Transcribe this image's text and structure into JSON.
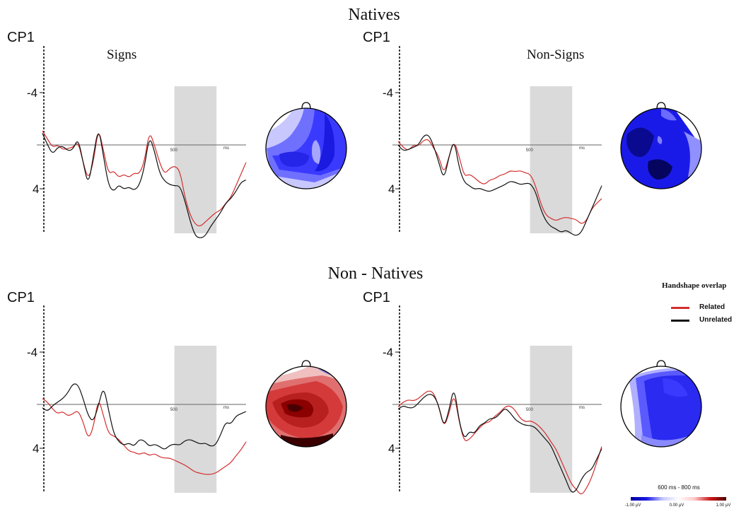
{
  "titles": {
    "natives": "Natives",
    "non_natives": "Non - Natives"
  },
  "legend": {
    "title": "Handshape overlap",
    "items": [
      {
        "label": "Related",
        "color": "#d32f2f"
      },
      {
        "label": "Unrelated",
        "color": "#111111"
      }
    ]
  },
  "colorbar": {
    "range_label": "600 ms - 800 ms",
    "ticks": [
      "-1.00 μV",
      "0.00 μV",
      "1.00 μV"
    ],
    "colors": [
      "#0000a0",
      "#ffffff",
      "#500000"
    ]
  },
  "chart_data": [
    {
      "type": "line",
      "group": "Natives",
      "electrode": "CP1",
      "condition": "Signs",
      "yticks": [
        "-4",
        "4"
      ],
      "xticks": [
        "500",
        "ms"
      ],
      "ylim": [
        -8,
        8
      ],
      "xlim": [
        -100,
        900
      ],
      "shaded_window_ms": [
        600,
        800
      ],
      "topo_colors": "blue",
      "series": [
        {
          "name": "Related",
          "color": "#d32f2f",
          "x": [
            -100,
            -75,
            -50,
            -25,
            0,
            25,
            50,
            75,
            100,
            125,
            150,
            175,
            200,
            225,
            250,
            275,
            300,
            325,
            350,
            375,
            400,
            425,
            450,
            475,
            500,
            525,
            550,
            575,
            600,
            625,
            650,
            675,
            700,
            725,
            750,
            775,
            800,
            825,
            850,
            875,
            900
          ],
          "y": [
            -1.2,
            -0.5,
            0.2,
            0,
            0.4,
            0.3,
            0.2,
            -0.3,
            1.5,
            3,
            1.5,
            -1.5,
            0.5,
            2.5,
            2.2,
            2.8,
            2.5,
            2.8,
            2.4,
            2.5,
            1.5,
            -1.2,
            0,
            1.5,
            2.5,
            2,
            1.8,
            2.2,
            4.5,
            6,
            6.8,
            7,
            6.6,
            6.2,
            5.8,
            5.6,
            5,
            4.5,
            3.5,
            2.5,
            1.5
          ]
        },
        {
          "name": "Unrelated",
          "color": "#111111",
          "x": [
            -100,
            -75,
            -50,
            -25,
            0,
            25,
            50,
            75,
            100,
            125,
            150,
            175,
            200,
            225,
            250,
            275,
            300,
            325,
            350,
            375,
            400,
            425,
            450,
            475,
            500,
            525,
            550,
            575,
            600,
            625,
            650,
            675,
            700,
            725,
            750,
            775,
            800,
            825,
            850,
            875,
            900
          ],
          "y": [
            -1,
            0,
            0.8,
            0.2,
            0.1,
            0.5,
            0.4,
            -0.6,
            1.5,
            3.5,
            1,
            -1.6,
            1,
            3.5,
            4,
            3.4,
            3.8,
            3.6,
            3.9,
            3.5,
            2,
            -0.8,
            0.5,
            2.4,
            3.1,
            3.4,
            3.5,
            3.5,
            4.8,
            6.5,
            7.8,
            8,
            7.8,
            7,
            6.4,
            5.8,
            5,
            4.6,
            4,
            3.2,
            3
          ]
        }
      ]
    },
    {
      "type": "line",
      "group": "Natives",
      "electrode": "CP1",
      "condition": "Non-Signs",
      "yticks": [
        "-4",
        "4"
      ],
      "xticks": [
        "500",
        "ms"
      ],
      "ylim": [
        -8,
        8
      ],
      "xlim": [
        -100,
        900
      ],
      "shaded_window_ms": [
        600,
        800
      ],
      "topo_colors": "blue",
      "series": [
        {
          "name": "Related",
          "color": "#d32f2f",
          "x": [
            -100,
            -75,
            -50,
            -25,
            0,
            25,
            50,
            75,
            100,
            125,
            150,
            175,
            200,
            225,
            250,
            275,
            300,
            325,
            350,
            375,
            400,
            425,
            450,
            475,
            500,
            525,
            550,
            575,
            600,
            625,
            650,
            675,
            700,
            725,
            750,
            775,
            800,
            825,
            850,
            875,
            900
          ],
          "y": [
            -0.3,
            0.2,
            0.5,
            0,
            0.1,
            -0.4,
            -0.5,
            0.3,
            1,
            2.5,
            1,
            -0.4,
            1,
            2.7,
            2.5,
            2.8,
            3.2,
            3.4,
            3,
            2.9,
            2.6,
            2.5,
            2.2,
            2.3,
            2.2,
            2.4,
            2.5,
            3.5,
            5,
            6,
            6.3,
            6.5,
            6.3,
            6.2,
            6.3,
            6.4,
            6.8,
            6.5,
            5.5,
            5,
            4.6
          ]
        },
        {
          "name": "Unrelated",
          "color": "#111111",
          "x": [
            -100,
            -75,
            -50,
            -25,
            0,
            25,
            50,
            75,
            100,
            125,
            150,
            175,
            200,
            225,
            250,
            275,
            300,
            325,
            350,
            375,
            400,
            425,
            450,
            475,
            500,
            525,
            550,
            575,
            600,
            625,
            650,
            675,
            700,
            725,
            750,
            775,
            800,
            825,
            850,
            875,
            900
          ],
          "y": [
            0,
            0.5,
            0.4,
            0.2,
            0,
            -0.8,
            -0.9,
            0.1,
            1.5,
            3,
            1,
            -0.5,
            2,
            3.2,
            3.5,
            3.8,
            3.7,
            3.9,
            4,
            3.8,
            3.6,
            3.4,
            3.1,
            3.2,
            3.4,
            3.3,
            3.3,
            4,
            5.5,
            6.5,
            7,
            7.2,
            7.5,
            7.3,
            7.6,
            7.8,
            7.5,
            6.5,
            5.5,
            4.5,
            3.5
          ]
        }
      ]
    },
    {
      "type": "line",
      "group": "Non - Natives",
      "electrode": "CP1",
      "condition": "Signs",
      "yticks": [
        "-4",
        "4"
      ],
      "xticks": [
        "500",
        "ms"
      ],
      "ylim": [
        -8,
        8
      ],
      "xlim": [
        -100,
        900
      ],
      "shaded_window_ms": [
        600,
        800
      ],
      "topo_colors": "red",
      "series": [
        {
          "name": "Related",
          "color": "#d32f2f",
          "x": [
            -100,
            -75,
            -50,
            -25,
            0,
            25,
            50,
            75,
            100,
            125,
            150,
            175,
            200,
            225,
            250,
            275,
            300,
            325,
            350,
            375,
            400,
            425,
            450,
            475,
            500,
            525,
            550,
            575,
            600,
            625,
            650,
            675,
            700,
            725,
            750,
            775,
            800,
            825,
            850,
            875,
            900
          ],
          "y": [
            -0.5,
            -0.2,
            0.4,
            0.8,
            0.6,
            1,
            0.8,
            0.5,
            1.5,
            3,
            2,
            -0.6,
            1,
            2.5,
            2.7,
            3,
            3.5,
            4,
            4.1,
            4.3,
            4.1,
            4.4,
            4.2,
            4.5,
            4.6,
            4.6,
            4.8,
            5,
            5.2,
            5.5,
            5.8,
            5.9,
            6,
            6,
            5.9,
            5.6,
            5.3,
            5,
            4.4,
            3.9,
            3.2
          ]
        },
        {
          "name": "Unrelated",
          "color": "#111111",
          "x": [
            -100,
            -75,
            -50,
            -25,
            0,
            25,
            50,
            75,
            100,
            125,
            150,
            175,
            200,
            225,
            250,
            275,
            300,
            325,
            350,
            375,
            400,
            425,
            450,
            475,
            500,
            525,
            550,
            575,
            600,
            625,
            650,
            675,
            700,
            725,
            750,
            775,
            800,
            825,
            850,
            875,
            900
          ],
          "y": [
            0.3,
            0.6,
            0.1,
            -0.2,
            -0.5,
            -1,
            -1.8,
            -1.7,
            -0.5,
            1,
            1.5,
            0.1,
            -1.6,
            0.5,
            2.5,
            3.2,
            3.5,
            3.3,
            3.6,
            3,
            3.1,
            3.6,
            3.4,
            3.6,
            3.9,
            3.5,
            3.4,
            3.5,
            3.1,
            3,
            3.2,
            3.4,
            3.3,
            3.6,
            3.5,
            2.6,
            1.5,
            1.7,
            1,
            0.8,
            0.6
          ]
        }
      ]
    },
    {
      "type": "line",
      "group": "Non - Natives",
      "electrode": "CP1",
      "condition": "Non-Signs",
      "yticks": [
        "-4",
        "4"
      ],
      "xticks": [
        "500",
        "ms"
      ],
      "ylim": [
        -8,
        8
      ],
      "xlim": [
        -100,
        900
      ],
      "shaded_window_ms": [
        600,
        800
      ],
      "topo_colors": "blue",
      "series": [
        {
          "name": "Related",
          "color": "#d32f2f",
          "x": [
            -100,
            -75,
            -50,
            -25,
            0,
            25,
            50,
            75,
            100,
            125,
            150,
            175,
            200,
            225,
            250,
            275,
            300,
            325,
            350,
            375,
            400,
            425,
            450,
            475,
            500,
            525,
            550,
            575,
            600,
            625,
            650,
            675,
            700,
            725,
            750,
            775,
            800,
            825,
            850,
            875,
            900
          ],
          "y": [
            0.2,
            -0.2,
            -0.4,
            -0.3,
            -0.5,
            -0.9,
            -1.2,
            -1,
            0.2,
            2,
            0.8,
            -1,
            1.5,
            3.2,
            3,
            2.5,
            2,
            1.6,
            1.5,
            1,
            0.7,
            0.2,
            0.1,
            0.5,
            1.2,
            1.5,
            1.4,
            1.6,
            2,
            2.5,
            3.2,
            3.8,
            4.8,
            5.8,
            6.8,
            7.3,
            7.8,
            7.2,
            6.3,
            5,
            3.6
          ]
        },
        {
          "name": "Unrelated",
          "color": "#111111",
          "x": [
            -100,
            -75,
            -50,
            -25,
            0,
            25,
            50,
            75,
            100,
            125,
            150,
            175,
            200,
            225,
            250,
            275,
            300,
            325,
            350,
            375,
            400,
            425,
            450,
            475,
            500,
            525,
            550,
            575,
            600,
            625,
            650,
            675,
            700,
            725,
            750,
            775,
            800,
            825,
            850,
            875,
            900
          ],
          "y": [
            0.4,
            0.1,
            0.3,
            0.3,
            -0.1,
            -0.6,
            -0.9,
            -0.8,
            0.1,
            2,
            0.5,
            -1.6,
            1.5,
            3,
            2.3,
            2.5,
            1.8,
            1.6,
            1.2,
            1.2,
            0.8,
            0.3,
            0.7,
            1.3,
            1.6,
            1.8,
            1.8,
            2,
            2.5,
            3,
            3.5,
            4.5,
            5.5,
            6.5,
            7.6,
            7.4,
            6.4,
            5.8,
            5.6,
            4.7,
            3.8
          ]
        }
      ]
    }
  ]
}
